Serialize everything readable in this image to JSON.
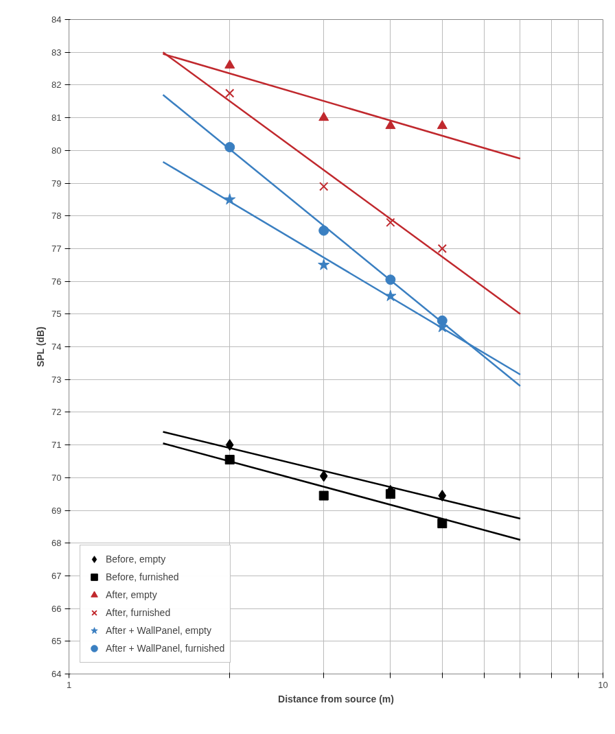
{
  "chart_data": {
    "type": "scatter",
    "xlabel": "Distance from source (m)",
    "ylabel": "SPL (dB)",
    "log": "x",
    "xlim": [
      1,
      10
    ],
    "ylim": [
      64,
      84
    ],
    "xticks": [
      1,
      {
        "value": 2,
        "label": null
      },
      {
        "value": 3,
        "label": null
      },
      {
        "value": 4,
        "label": null
      },
      {
        "value": 5,
        "label": null
      },
      {
        "value": 6,
        "label": null
      },
      {
        "value": 7,
        "label": null
      },
      {
        "value": 8,
        "label": null
      },
      {
        "value": 9,
        "label": null
      },
      10
    ],
    "yticks": [
      64,
      65,
      66,
      67,
      68,
      69,
      70,
      71,
      72,
      73,
      74,
      75,
      76,
      77,
      78,
      79,
      80,
      81,
      82,
      83,
      84
    ],
    "grid": true,
    "legend": "bottom left",
    "series": [
      {
        "name": "Before, empty",
        "color": "#000000",
        "marker": "diamond",
        "x": [
          2,
          3,
          4,
          5
        ],
        "values": [
          71.0,
          70.05,
          69.6,
          69.45
        ]
      },
      {
        "name": "Before, furnished",
        "color": "#000000",
        "marker": "square",
        "x": [
          2,
          3,
          4,
          5
        ],
        "values": [
          70.55,
          69.45,
          69.5,
          68.6
        ]
      },
      {
        "name": "After, empty",
        "color": "#c0282d",
        "marker": "triangle",
        "x": [
          2,
          3,
          4,
          5
        ],
        "values": [
          82.6,
          81.0,
          80.75,
          80.75
        ]
      },
      {
        "name": "After, furnished",
        "color": "#c0282d",
        "marker": "cross",
        "x": [
          2,
          3,
          4,
          5
        ],
        "values": [
          81.75,
          78.9,
          77.8,
          77.0
        ]
      },
      {
        "name": "After + WallPanel, empty",
        "color": "#3a7fc1",
        "marker": "star",
        "x": [
          2,
          3,
          4,
          5
        ],
        "values": [
          78.5,
          76.5,
          75.55,
          74.6
        ]
      },
      {
        "name": "After + WallPanel, furnished",
        "color": "#3a7fc1",
        "marker": "circle",
        "x": [
          2,
          3,
          4,
          5
        ],
        "values": [
          80.1,
          77.55,
          76.05,
          74.8
        ]
      },
      {
        "type": "line",
        "color": "#000000",
        "marker": "none",
        "x": [
          1.5,
          7
        ],
        "values": [
          71.4,
          68.75
        ]
      },
      {
        "type": "line",
        "color": "#000000",
        "marker": "none",
        "x": [
          1.5,
          7
        ],
        "values": [
          71.05,
          68.1
        ]
      },
      {
        "type": "line",
        "color": "#c0282d",
        "marker": "none",
        "x": [
          1.5,
          7
        ],
        "values": [
          82.95,
          79.75
        ]
      },
      {
        "type": "line",
        "color": "#c0282d",
        "marker": "none",
        "x": [
          1.5,
          7
        ],
        "values": [
          83.0,
          75.0
        ]
      },
      {
        "type": "line",
        "color": "#3a7fc1",
        "marker": "none",
        "x": [
          1.5,
          7
        ],
        "values": [
          79.65,
          73.15
        ]
      },
      {
        "type": "line",
        "color": "#3a7fc1",
        "marker": "none",
        "x": [
          1.5,
          7
        ],
        "values": [
          81.7,
          72.8
        ]
      }
    ]
  }
}
